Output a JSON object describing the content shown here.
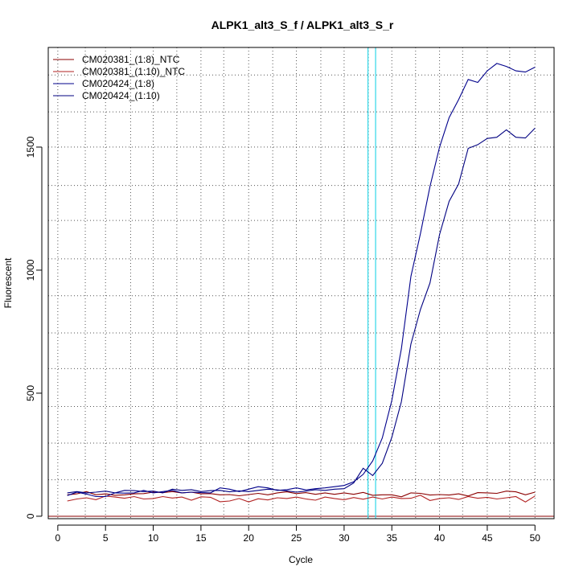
{
  "chart_data": {
    "type": "line",
    "title": "ALPK1_alt3_S_f / ALPK1_alt3_S_r",
    "xlabel": "Cycle",
    "ylabel": "Fluorescent",
    "xlim": [
      -1,
      52
    ],
    "ylim": [
      -10,
      1905
    ],
    "xticks": [
      0,
      5,
      10,
      15,
      20,
      25,
      30,
      35,
      40,
      45,
      50
    ],
    "yticks": [
      0,
      500,
      1000,
      1500
    ],
    "x_dotted_grid": [
      0,
      2.88,
      5,
      7.63,
      10,
      12.47,
      15,
      17.39,
      20,
      22.52,
      25,
      27.56,
      30,
      32.53,
      35,
      37.49,
      40,
      42.42,
      45,
      47.35,
      50
    ],
    "y_dotted_grid": [
      0,
      148,
      297,
      446,
      600,
      745,
      896,
      1046,
      1202,
      1344,
      1500,
      1643,
      1793
    ],
    "baseline": 0,
    "baseline_color": "#8b0000",
    "threshold_cycles": [
      32.5,
      33.3
    ],
    "threshold_color": "#30d8e8",
    "legend_position": "top-left",
    "series": [
      {
        "name": "CM020381_(1:8)_NTC",
        "color": "#8b0000",
        "x": [
          1,
          2,
          3,
          4,
          5,
          6,
          7,
          8,
          9,
          10,
          11,
          12,
          13,
          14,
          15,
          16,
          17,
          18,
          19,
          20,
          21,
          22,
          23,
          24,
          25,
          26,
          27,
          28,
          29,
          30,
          31,
          32,
          33,
          34,
          35,
          36,
          37,
          38,
          39,
          40,
          41,
          42,
          43,
          44,
          45,
          46,
          47,
          48,
          49,
          50
        ],
        "values": [
          87,
          91,
          100,
          87,
          91,
          85,
          87,
          91,
          92,
          98,
          96,
          100,
          95,
          98,
          91,
          92,
          87,
          88,
          83,
          88,
          93,
          87,
          95,
          99,
          92,
          96,
          89,
          95,
          89,
          95,
          89,
          97,
          85,
          87,
          87,
          79,
          95,
          93,
          86,
          88,
          86,
          91,
          82,
          96,
          95,
          93,
          102,
          99,
          87,
          98
        ]
      },
      {
        "name": "CM020381_(1:10)_NTC",
        "color": "#b22222",
        "x": [
          1,
          2,
          3,
          4,
          5,
          6,
          7,
          8,
          9,
          10,
          11,
          12,
          13,
          14,
          15,
          16,
          17,
          18,
          19,
          20,
          21,
          22,
          23,
          24,
          25,
          26,
          27,
          28,
          29,
          30,
          31,
          32,
          33,
          34,
          35,
          36,
          37,
          38,
          39,
          40,
          41,
          42,
          43,
          44,
          45,
          46,
          47,
          48,
          49,
          50
        ],
        "values": [
          62,
          70,
          75,
          67,
          82,
          78,
          73,
          80,
          70,
          72,
          80,
          74,
          78,
          65,
          79,
          77,
          59,
          62,
          72,
          58,
          71,
          66,
          75,
          72,
          78,
          70,
          65,
          78,
          72,
          67,
          76,
          69,
          78,
          70,
          78,
          72,
          73,
          85,
          64,
          72,
          75,
          68,
          80,
          73,
          77,
          70,
          75,
          80,
          58,
          82
        ]
      },
      {
        "name": "CM020424_(1:8)",
        "color": "#00008b",
        "x": [
          1,
          2,
          3,
          4,
          5,
          6,
          7,
          8,
          9,
          10,
          11,
          12,
          13,
          14,
          15,
          16,
          17,
          18,
          19,
          20,
          21,
          22,
          23,
          24,
          25,
          26,
          27,
          28,
          29,
          30,
          31,
          32,
          33,
          34,
          35,
          36,
          37,
          38,
          39,
          40,
          41,
          42,
          43,
          44,
          45,
          46,
          47,
          48,
          49,
          50
        ],
        "values": [
          84,
          98,
          90,
          80,
          80,
          95,
          94,
          95,
          105,
          95,
          100,
          105,
          95,
          98,
          96,
          95,
          115,
          110,
          100,
          110,
          120,
          115,
          105,
          108,
          115,
          107,
          112,
          115,
          120,
          125,
          140,
          170,
          225,
          318,
          470,
          680,
          975,
          1148,
          1340,
          1500,
          1620,
          1693,
          1775,
          1763,
          1810,
          1840,
          1828,
          1810,
          1805,
          1825
        ]
      },
      {
        "name": "CM020424_(1:10)",
        "color": "#000080",
        "x": [
          1,
          2,
          3,
          4,
          5,
          6,
          7,
          8,
          9,
          10,
          11,
          12,
          13,
          14,
          15,
          16,
          17,
          18,
          19,
          20,
          21,
          22,
          23,
          24,
          25,
          26,
          27,
          28,
          29,
          30,
          31,
          32,
          33,
          34,
          35,
          36,
          37,
          38,
          39,
          40,
          41,
          42,
          43,
          44,
          45,
          46,
          47,
          48,
          49,
          50
        ],
        "values": [
          95,
          100,
          95,
          98,
          102,
          95,
          105,
          104,
          100,
          102,
          95,
          110,
          105,
          108,
          100,
          104,
          105,
          99,
          103,
          100,
          105,
          110,
          107,
          103,
          98,
          102,
          108,
          105,
          110,
          112,
          135,
          195,
          165,
          215,
          320,
          465,
          700,
          840,
          948,
          1145,
          1280,
          1350,
          1495,
          1510,
          1535,
          1540,
          1570,
          1540,
          1537,
          1577
        ]
      }
    ]
  }
}
